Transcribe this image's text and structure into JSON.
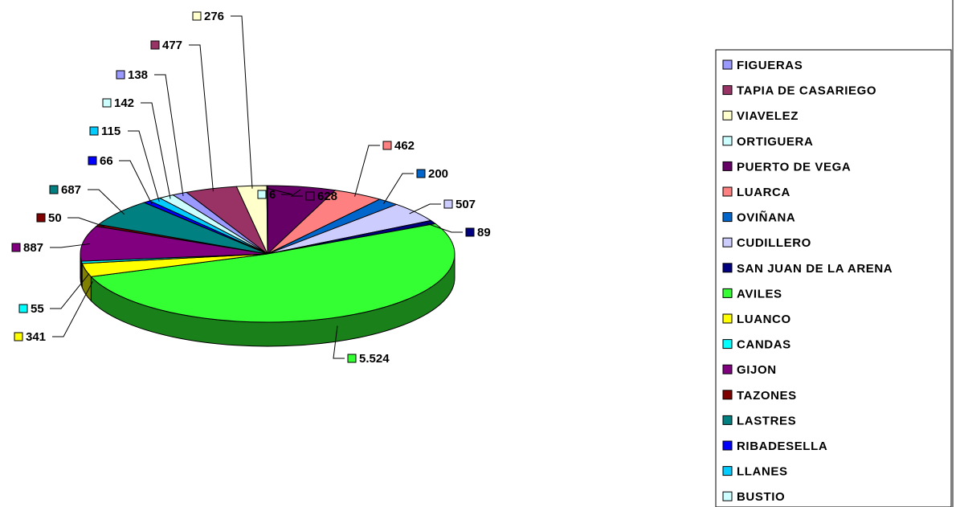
{
  "chart_data": {
    "type": "pie",
    "three_d": true,
    "legend_position": "right",
    "slices": [
      {
        "name": "PUERTO DE VEGA",
        "label": "628",
        "value": 628,
        "color": "#660066"
      },
      {
        "name": "LUARCA",
        "label": "462",
        "value": 462,
        "color": "#FF8080"
      },
      {
        "name": "OVIÑANA",
        "label": "200",
        "value": 200,
        "color": "#0066CC"
      },
      {
        "name": "CUDILLERO",
        "label": "507",
        "value": 507,
        "color": "#CCCCFF"
      },
      {
        "name": "SAN JUAN DE LA ARENA",
        "label": "89",
        "value": 89,
        "color": "#000080"
      },
      {
        "name": "AVILES",
        "label": "5.524",
        "value": 5524,
        "color": "#33FF33"
      },
      {
        "name": "LUANCO",
        "label": "341",
        "value": 341,
        "color": "#FFFF00"
      },
      {
        "name": "CANDAS",
        "label": "55",
        "value": 55,
        "color": "#00FFFF"
      },
      {
        "name": "GIJON",
        "label": "887",
        "value": 887,
        "color": "#800080"
      },
      {
        "name": "TAZONES",
        "label": "50",
        "value": 50,
        "color": "#800000"
      },
      {
        "name": "LASTRES",
        "label": "687",
        "value": 687,
        "color": "#008080"
      },
      {
        "name": "RIBADESELLA",
        "label": "66",
        "value": 66,
        "color": "#0000FF"
      },
      {
        "name": "LLANES",
        "label": "115",
        "value": 115,
        "color": "#00CCFF"
      },
      {
        "name": "BUSTIO",
        "label": "142",
        "value": 142,
        "color": "#CCFFFF"
      },
      {
        "name": "FIGUERAS",
        "label": "138",
        "value": 138,
        "color": "#9999FF"
      },
      {
        "name": "TAPIA DE CASARIEGO",
        "label": "477",
        "value": 477,
        "color": "#993366"
      },
      {
        "name": "VIAVELEZ",
        "label": "276",
        "value": 276,
        "color": "#FFFFCC"
      },
      {
        "name": "ORTIGUERA",
        "label": "6",
        "value": 6,
        "color": "#CCFFFF"
      }
    ],
    "legend_order": [
      "FIGUERAS",
      "TAPIA DE CASARIEGO",
      "VIAVELEZ",
      "ORTIGUERA",
      "PUERTO DE VEGA",
      "LUARCA",
      "OVIÑANA",
      "CUDILLERO",
      "SAN JUAN DE LA ARENA",
      "AVILES",
      "LUANCO",
      "CANDAS",
      "GIJON",
      "TAZONES",
      "LASTRES",
      "RIBADESELLA",
      "LLANES",
      "BUSTIO"
    ]
  }
}
